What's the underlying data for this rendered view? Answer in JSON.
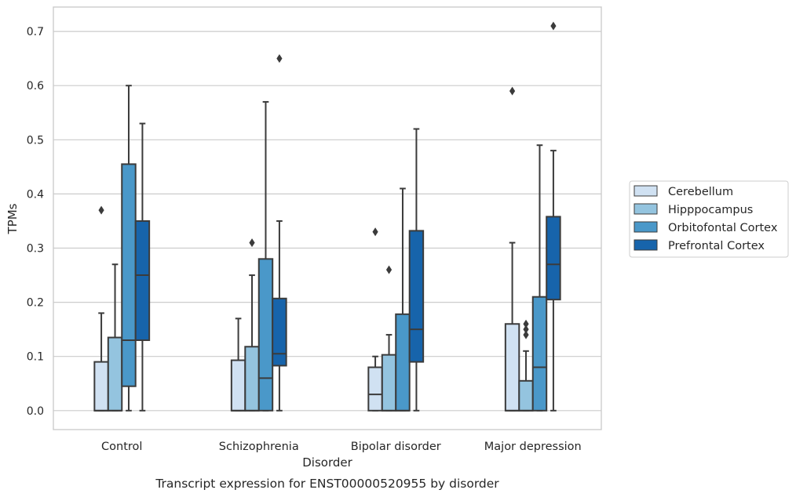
{
  "chart_data": {
    "type": "box",
    "title": "",
    "caption": "Transcript expression for ENST00000520955 by disorder",
    "xlabel": "Disorder",
    "ylabel": "TPMs",
    "categories": [
      "Control",
      "Schizophrenia",
      "Bipolar disorder",
      "Major depression"
    ],
    "ylim": [
      -0.035,
      0.745
    ],
    "yticks": [
      "0.0",
      "0.1",
      "0.2",
      "0.3",
      "0.4",
      "0.5",
      "0.6",
      "0.7"
    ],
    "ytick_values": [
      0,
      0.1,
      0.2,
      0.3,
      0.4,
      0.5,
      0.6,
      0.7
    ],
    "grid": true,
    "legend_position": "right",
    "series": [
      {
        "name": "Cerebellum",
        "color": "#d0e1f2",
        "boxes": [
          {
            "whislo": 0,
            "q1": 0,
            "med": 0,
            "q3": 0.09,
            "whishi": 0.18,
            "fliers": [
              0.37
            ]
          },
          {
            "whislo": 0,
            "q1": 0,
            "med": 0,
            "q3": 0.093,
            "whishi": 0.17,
            "fliers": []
          },
          {
            "whislo": 0,
            "q1": 0,
            "med": 0.03,
            "q3": 0.08,
            "whishi": 0.1,
            "fliers": [
              0.33
            ]
          },
          {
            "whislo": 0,
            "q1": 0,
            "med": 0,
            "q3": 0.16,
            "whishi": 0.31,
            "fliers": [
              0.59
            ]
          }
        ]
      },
      {
        "name": "Hipppocampus",
        "color": "#94c4df",
        "boxes": [
          {
            "whislo": 0,
            "q1": 0,
            "med": 0,
            "q3": 0.135,
            "whishi": 0.27,
            "fliers": []
          },
          {
            "whislo": 0,
            "q1": 0,
            "med": 0,
            "q3": 0.118,
            "whishi": 0.25,
            "fliers": [
              0.31
            ]
          },
          {
            "whislo": 0,
            "q1": 0,
            "med": 0,
            "q3": 0.103,
            "whishi": 0.14,
            "fliers": [
              0.26
            ]
          },
          {
            "whislo": 0,
            "q1": 0,
            "med": 0,
            "q3": 0.055,
            "whishi": 0.11,
            "fliers": [
              0.14,
              0.15,
              0.16
            ]
          }
        ]
      },
      {
        "name": "Orbitofontal Cortex",
        "color": "#4a98c9",
        "boxes": [
          {
            "whislo": 0,
            "q1": 0.045,
            "med": 0.13,
            "q3": 0.455,
            "whishi": 0.6,
            "fliers": []
          },
          {
            "whislo": 0,
            "q1": 0,
            "med": 0.06,
            "q3": 0.28,
            "whishi": 0.57,
            "fliers": []
          },
          {
            "whislo": 0,
            "q1": 0,
            "med": 0,
            "q3": 0.178,
            "whishi": 0.41,
            "fliers": []
          },
          {
            "whislo": 0,
            "q1": 0,
            "med": 0.08,
            "q3": 0.21,
            "whishi": 0.49,
            "fliers": []
          }
        ]
      },
      {
        "name": "Prefrontal Cortex",
        "color": "#1764ab",
        "boxes": [
          {
            "whislo": 0,
            "q1": 0.13,
            "med": 0.25,
            "q3": 0.35,
            "whishi": 0.53,
            "fliers": []
          },
          {
            "whislo": 0,
            "q1": 0.083,
            "med": 0.105,
            "q3": 0.207,
            "whishi": 0.35,
            "fliers": [
              0.65
            ]
          },
          {
            "whislo": 0,
            "q1": 0.09,
            "med": 0.15,
            "q3": 0.332,
            "whishi": 0.52,
            "fliers": []
          },
          {
            "whislo": 0,
            "q1": 0.205,
            "med": 0.27,
            "q3": 0.358,
            "whishi": 0.48,
            "fliers": [
              0.71
            ]
          }
        ]
      }
    ]
  }
}
